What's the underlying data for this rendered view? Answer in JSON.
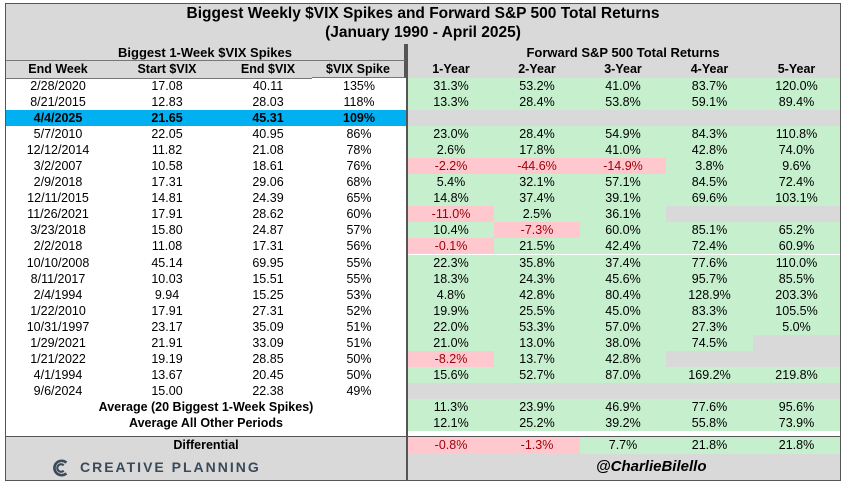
{
  "title": {
    "line1": "Biggest Weekly $VIX Spikes and Forward S&P 500 Total Returns",
    "line2": "(January 1990 - April 2025)"
  },
  "sections": {
    "left": "Biggest 1-Week $VIX Spikes",
    "right": "Forward S&P 500 Total Returns"
  },
  "columns": [
    "End Week",
    "Start $VIX",
    "End $VIX",
    "$VIX Spike",
    "1-Year",
    "2-Year",
    "3-Year",
    "4-Year",
    "5-Year"
  ],
  "rows": [
    {
      "end": "2/28/2020",
      "start": "17.08",
      "endv": "40.11",
      "spike": "135%",
      "r": [
        [
          "31.3%",
          "g"
        ],
        [
          "53.2%",
          "g"
        ],
        [
          "41.0%",
          "g"
        ],
        [
          "83.7%",
          "g"
        ],
        [
          "120.0%",
          "g"
        ]
      ]
    },
    {
      "end": "8/21/2015",
      "start": "12.83",
      "endv": "28.03",
      "spike": "118%",
      "r": [
        [
          "13.3%",
          "g"
        ],
        [
          "28.4%",
          "g"
        ],
        [
          "53.8%",
          "g"
        ],
        [
          "59.1%",
          "g"
        ],
        [
          "89.4%",
          "g"
        ]
      ]
    },
    {
      "end": "4/4/2025",
      "start": "21.65",
      "endv": "45.31",
      "spike": "109%",
      "highlight": true,
      "r": [
        [
          "",
          "x"
        ],
        [
          "",
          "x"
        ],
        [
          "",
          "x"
        ],
        [
          "",
          "x"
        ],
        [
          "",
          "x"
        ]
      ]
    },
    {
      "end": "5/7/2010",
      "start": "22.05",
      "endv": "40.95",
      "spike": "86%",
      "r": [
        [
          "23.0%",
          "g"
        ],
        [
          "28.4%",
          "g"
        ],
        [
          "54.9%",
          "g"
        ],
        [
          "84.3%",
          "g"
        ],
        [
          "110.8%",
          "g"
        ]
      ]
    },
    {
      "end": "12/12/2014",
      "start": "11.82",
      "endv": "21.08",
      "spike": "78%",
      "r": [
        [
          "2.6%",
          "g"
        ],
        [
          "17.8%",
          "g"
        ],
        [
          "41.0%",
          "g"
        ],
        [
          "42.8%",
          "g"
        ],
        [
          "74.0%",
          "g"
        ]
      ]
    },
    {
      "end": "3/2/2007",
      "start": "10.58",
      "endv": "18.61",
      "spike": "76%",
      "r": [
        [
          "-2.2%",
          "r"
        ],
        [
          "-44.6%",
          "r"
        ],
        [
          "-14.9%",
          "r"
        ],
        [
          "3.8%",
          "g"
        ],
        [
          "9.6%",
          "g"
        ]
      ]
    },
    {
      "end": "2/9/2018",
      "start": "17.31",
      "endv": "29.06",
      "spike": "68%",
      "r": [
        [
          "5.4%",
          "g"
        ],
        [
          "32.1%",
          "g"
        ],
        [
          "57.1%",
          "g"
        ],
        [
          "84.5%",
          "g"
        ],
        [
          "72.4%",
          "g"
        ]
      ]
    },
    {
      "end": "12/11/2015",
      "start": "14.81",
      "endv": "24.39",
      "spike": "65%",
      "r": [
        [
          "14.8%",
          "g"
        ],
        [
          "37.4%",
          "g"
        ],
        [
          "39.1%",
          "g"
        ],
        [
          "69.6%",
          "g"
        ],
        [
          "103.1%",
          "g"
        ]
      ]
    },
    {
      "end": "11/26/2021",
      "start": "17.91",
      "endv": "28.62",
      "spike": "60%",
      "r": [
        [
          "-11.0%",
          "r"
        ],
        [
          "2.5%",
          "g"
        ],
        [
          "36.1%",
          "g"
        ],
        [
          "",
          "x"
        ],
        [
          "",
          "x"
        ]
      ]
    },
    {
      "end": "3/23/2018",
      "start": "15.80",
      "endv": "24.87",
      "spike": "57%",
      "r": [
        [
          "10.4%",
          "g"
        ],
        [
          "-7.3%",
          "r"
        ],
        [
          "60.0%",
          "g"
        ],
        [
          "85.1%",
          "g"
        ],
        [
          "65.2%",
          "g"
        ]
      ]
    },
    {
      "end": "2/2/2018",
      "start": "11.08",
      "endv": "17.31",
      "spike": "56%",
      "r": [
        [
          "-0.1%",
          "r"
        ],
        [
          "21.5%",
          "g"
        ],
        [
          "42.4%",
          "g"
        ],
        [
          "72.4%",
          "g"
        ],
        [
          "60.9%",
          "g"
        ]
      ]
    },
    {
      "end": "10/10/2008",
      "start": "45.14",
      "endv": "69.95",
      "spike": "55%",
      "r": [
        [
          "22.3%",
          "g"
        ],
        [
          "35.8%",
          "g"
        ],
        [
          "37.4%",
          "g"
        ],
        [
          "77.6%",
          "g"
        ],
        [
          "110.0%",
          "g"
        ]
      ]
    },
    {
      "end": "8/11/2017",
      "start": "10.03",
      "endv": "15.51",
      "spike": "55%",
      "r": [
        [
          "18.3%",
          "g"
        ],
        [
          "24.3%",
          "g"
        ],
        [
          "45.6%",
          "g"
        ],
        [
          "95.7%",
          "g"
        ],
        [
          "85.5%",
          "g"
        ]
      ]
    },
    {
      "end": "2/4/1994",
      "start": "9.94",
      "endv": "15.25",
      "spike": "53%",
      "r": [
        [
          "4.8%",
          "g"
        ],
        [
          "42.8%",
          "g"
        ],
        [
          "80.4%",
          "g"
        ],
        [
          "128.9%",
          "g"
        ],
        [
          "203.3%",
          "g"
        ]
      ]
    },
    {
      "end": "1/22/2010",
      "start": "17.91",
      "endv": "27.31",
      "spike": "52%",
      "r": [
        [
          "19.9%",
          "g"
        ],
        [
          "25.5%",
          "g"
        ],
        [
          "45.0%",
          "g"
        ],
        [
          "83.3%",
          "g"
        ],
        [
          "105.5%",
          "g"
        ]
      ]
    },
    {
      "end": "10/31/1997",
      "start": "23.17",
      "endv": "35.09",
      "spike": "51%",
      "r": [
        [
          "22.0%",
          "g"
        ],
        [
          "53.3%",
          "g"
        ],
        [
          "57.0%",
          "g"
        ],
        [
          "27.3%",
          "g"
        ],
        [
          "5.0%",
          "g"
        ]
      ]
    },
    {
      "end": "1/29/2021",
      "start": "21.91",
      "endv": "33.09",
      "spike": "51%",
      "r": [
        [
          "21.0%",
          "g"
        ],
        [
          "13.0%",
          "g"
        ],
        [
          "38.0%",
          "g"
        ],
        [
          "74.5%",
          "g"
        ],
        [
          "",
          "x"
        ]
      ]
    },
    {
      "end": "1/21/2022",
      "start": "19.19",
      "endv": "28.85",
      "spike": "50%",
      "r": [
        [
          "-8.2%",
          "r"
        ],
        [
          "13.7%",
          "g"
        ],
        [
          "42.8%",
          "g"
        ],
        [
          "",
          "x"
        ],
        [
          "",
          "x"
        ]
      ]
    },
    {
      "end": "4/1/1994",
      "start": "13.67",
      "endv": "20.45",
      "spike": "50%",
      "r": [
        [
          "15.6%",
          "g"
        ],
        [
          "52.7%",
          "g"
        ],
        [
          "87.0%",
          "g"
        ],
        [
          "169.2%",
          "g"
        ],
        [
          "219.8%",
          "g"
        ]
      ]
    },
    {
      "end": "9/6/2024",
      "start": "15.00",
      "endv": "22.38",
      "spike": "49%",
      "r": [
        [
          "",
          "x"
        ],
        [
          "",
          "x"
        ],
        [
          "",
          "x"
        ],
        [
          "",
          "x"
        ],
        [
          "",
          "x"
        ]
      ]
    }
  ],
  "averages": [
    {
      "label": "Average (20 Biggest 1-Week Spikes)",
      "r": [
        "11.3%",
        "23.9%",
        "46.9%",
        "77.6%",
        "95.6%"
      ]
    },
    {
      "label": "Average All Other Periods",
      "r": [
        "12.1%",
        "25.2%",
        "39.2%",
        "55.8%",
        "73.9%"
      ]
    }
  ],
  "differential": {
    "label": "Differential",
    "r": [
      [
        "-0.8%",
        "r"
      ],
      [
        "-1.3%",
        "r"
      ],
      [
        "7.7%",
        "g"
      ],
      [
        "21.8%",
        "g"
      ],
      [
        "21.8%",
        "g"
      ]
    ]
  },
  "footer": {
    "brand": "CREATIVE PLANNING",
    "handle": "@CharlieBilello"
  },
  "colors": {
    "green": "#c6efce",
    "red": "#ffc7ce",
    "highlight": "#00b0f0",
    "header": "#d9d9d9"
  }
}
